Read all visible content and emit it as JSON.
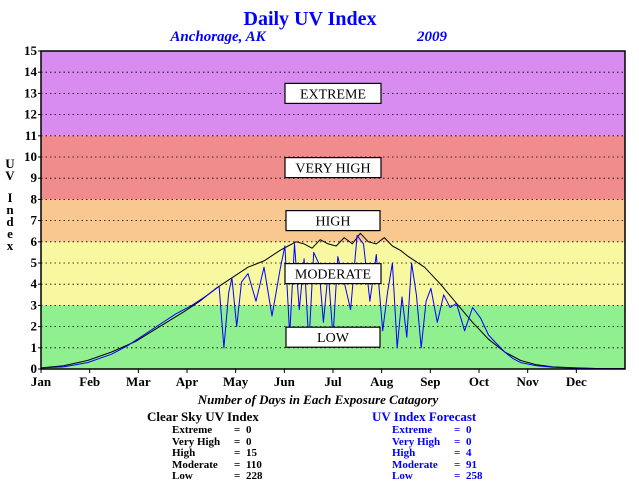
{
  "chart_data": {
    "type": "line",
    "title": "Daily UV Index",
    "location": "Anchorage, AK",
    "year": "2009",
    "ylabel": "UV Index",
    "ylim": [
      0,
      15
    ],
    "yticks": [
      "0",
      "1",
      "2",
      "3",
      "4",
      "5",
      "6",
      "7",
      "8",
      "9",
      "10",
      "11",
      "12",
      "13",
      "14",
      "15"
    ],
    "months": [
      "Jan",
      "Feb",
      "Mar",
      "Apr",
      "May",
      "Jun",
      "Jul",
      "Aug",
      "Sep",
      "Oct",
      "Nov",
      "Dec"
    ],
    "grid": true,
    "bands": [
      {
        "label": "LOW",
        "from": 0,
        "to": 3,
        "color": "#90f090"
      },
      {
        "label": "MODERATE",
        "from": 3,
        "to": 6,
        "color": "#f8f8a0"
      },
      {
        "label": "HIGH",
        "from": 6,
        "to": 8,
        "color": "#f8c890"
      },
      {
        "label": "VERY HIGH",
        "from": 8,
        "to": 11,
        "color": "#f08c8c"
      },
      {
        "label": "EXTREME",
        "from": 11,
        "to": 15,
        "color": "#d88cf0"
      }
    ],
    "series": [
      {
        "key": "clear_sky",
        "color": "#000000",
        "x": [
          1,
          15,
          30,
          45,
          60,
          75,
          90,
          100,
          110,
          120,
          130,
          140,
          150,
          155,
          160,
          165,
          170,
          175,
          180,
          185,
          190,
          195,
          200,
          205,
          210,
          215,
          220,
          225,
          230,
          240,
          250,
          260,
          270,
          280,
          290,
          300,
          310,
          320,
          335,
          350,
          365
        ],
        "y": [
          0.05,
          0.15,
          0.4,
          0.8,
          1.3,
          2.0,
          2.7,
          3.2,
          3.8,
          4.3,
          4.8,
          5.1,
          5.6,
          5.8,
          6.0,
          5.9,
          5.7,
          6.1,
          5.9,
          5.8,
          6.2,
          5.9,
          6.4,
          6.0,
          5.9,
          6.2,
          5.8,
          5.6,
          5.3,
          4.8,
          4.0,
          3.1,
          2.2,
          1.4,
          0.8,
          0.4,
          0.2,
          0.1,
          0.05,
          0.02,
          0.02
        ]
      },
      {
        "key": "forecast",
        "color": "#0000ff",
        "x": [
          1,
          15,
          30,
          45,
          55,
          65,
          75,
          85,
          95,
          105,
          112,
          115,
          118,
          120,
          123,
          126,
          130,
          135,
          140,
          145,
          150,
          153,
          156,
          159,
          162,
          165,
          168,
          171,
          174,
          177,
          180,
          183,
          186,
          190,
          194,
          198,
          202,
          206,
          210,
          214,
          217,
          220,
          223,
          226,
          229,
          232,
          235,
          238,
          241,
          244,
          248,
          252,
          256,
          260,
          265,
          270,
          275,
          280,
          285,
          290,
          295,
          300,
          310,
          320,
          335,
          350,
          365
        ],
        "y": [
          0.05,
          0.1,
          0.3,
          0.7,
          1.1,
          1.6,
          2.1,
          2.6,
          3.0,
          3.5,
          3.9,
          1.0,
          3.6,
          4.3,
          2.0,
          4.1,
          4.5,
          3.2,
          4.8,
          2.5,
          4.7,
          5.8,
          1.6,
          5.9,
          2.8,
          5.2,
          1.2,
          5.5,
          5.0,
          2.2,
          4.6,
          1.5,
          5.3,
          4.1,
          2.8,
          6.3,
          5.9,
          3.2,
          5.4,
          1.8,
          3.6,
          5.0,
          1.0,
          3.4,
          1.5,
          5.0,
          3.5,
          1.0,
          3.2,
          3.8,
          2.2,
          3.5,
          2.9,
          3.1,
          1.8,
          2.9,
          2.4,
          1.6,
          1.2,
          0.8,
          0.5,
          0.3,
          0.15,
          0.08,
          0.04,
          0.02,
          0.01
        ]
      }
    ]
  },
  "caption": "Number of Days in Each Exposure Catagory",
  "clear_stats": {
    "title": "Clear Sky UV Index",
    "rows": [
      {
        "label": "Extreme",
        "value": "0"
      },
      {
        "label": "Very High",
        "value": "0"
      },
      {
        "label": "High",
        "value": "15"
      },
      {
        "label": "Moderate",
        "value": "110"
      },
      {
        "label": "Low",
        "value": "228"
      }
    ]
  },
  "forecast_stats": {
    "title": "UV Index Forecast",
    "rows": [
      {
        "label": "Extreme",
        "value": "0"
      },
      {
        "label": "Very High",
        "value": "0"
      },
      {
        "label": "High",
        "value": "4"
      },
      {
        "label": "Moderate",
        "value": "91"
      },
      {
        "label": "Low",
        "value": "258"
      }
    ]
  }
}
